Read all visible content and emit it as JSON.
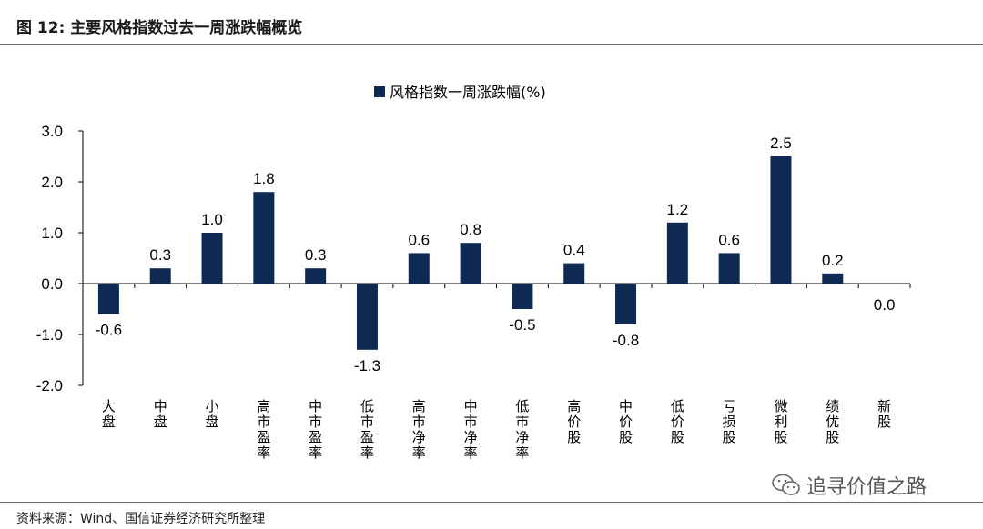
{
  "header": {
    "title": "图 12: 主要风格指数过去一周涨跌幅概览"
  },
  "footer": {
    "source": "资料来源：Wind、国信证券经济研究所整理"
  },
  "watermark": {
    "text": "追寻价值之路",
    "icon": "wechat-icon"
  },
  "colors": {
    "bar": "#0e2a52",
    "axis": "#000000"
  },
  "chart_data": {
    "type": "bar",
    "title": "",
    "xlabel": "",
    "ylabel": "",
    "ylim": [
      -2.0,
      3.0
    ],
    "yticks": [
      3.0,
      2.0,
      1.0,
      0.0,
      -1.0,
      -2.0
    ],
    "ytick_labels": [
      "3.0",
      "2.0",
      "1.0",
      "0.0",
      "-1.0",
      "-2.0"
    ],
    "legend": {
      "position": "top-center"
    },
    "categories": [
      "大盘",
      "中盘",
      "小盘",
      "高市盈率",
      "中市盈率",
      "低市盈率",
      "高市净率",
      "中市净率",
      "低市净率",
      "高价股",
      "中价股",
      "低价股",
      "亏损股",
      "微利股",
      "绩优股",
      "新股"
    ],
    "series": [
      {
        "name": "风格指数一周涨跌幅(%)",
        "values": [
          -0.6,
          0.3,
          1.0,
          1.8,
          0.3,
          -1.3,
          0.6,
          0.8,
          -0.5,
          0.4,
          -0.8,
          1.2,
          0.6,
          2.5,
          0.2,
          0.0
        ],
        "labels": [
          "-0.6",
          "0.3",
          "1.0",
          "1.8",
          "0.3",
          "-1.3",
          "0.6",
          "0.8",
          "-0.5",
          "0.4",
          "-0.8",
          "1.2",
          "0.6",
          "2.5",
          "0.2",
          "0.0"
        ]
      }
    ]
  }
}
